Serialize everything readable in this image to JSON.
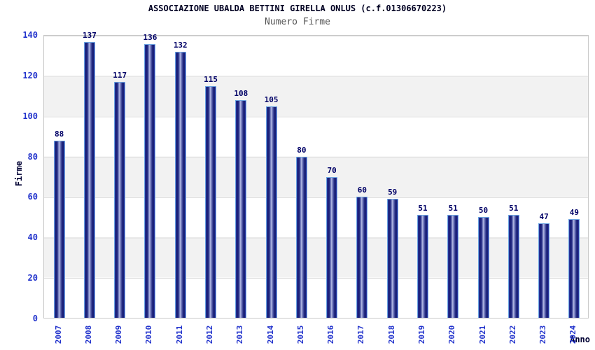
{
  "header": {
    "title": "ASSOCIAZIONE UBALDA BETTINI GIRELLA ONLUS (c.f.01306670223)",
    "subtitle": "Numero Firme"
  },
  "chart_data": {
    "type": "bar",
    "title": "ASSOCIAZIONE UBALDA BETTINI GIRELLA ONLUS (c.f.01306670223)",
    "subtitle": "Numero Firme",
    "xlabel": "Anno",
    "ylabel": "Firme",
    "categories": [
      "2007",
      "2008",
      "2009",
      "2010",
      "2011",
      "2012",
      "2013",
      "2014",
      "2015",
      "2016",
      "2017",
      "2018",
      "2019",
      "2020",
      "2021",
      "2022",
      "2023",
      "2024"
    ],
    "values": [
      88,
      137,
      117,
      136,
      132,
      115,
      108,
      105,
      80,
      70,
      60,
      59,
      51,
      51,
      50,
      51,
      47,
      49
    ],
    "ylim": [
      0,
      140
    ],
    "yticks": [
      0,
      20,
      40,
      60,
      80,
      100,
      120,
      140
    ],
    "grid": "alternating-horizontal-bands",
    "legend": "none",
    "colors": {
      "bar_dark": "#171d74",
      "bar_light": "#b9bfe6",
      "bar_border": "#6ea6e2",
      "tick_label": "#2233cc",
      "value_label": "#000066",
      "axis_title": "#000033",
      "title": "#000022",
      "subtitle": "#555555",
      "band_gray": "#f2f2f2",
      "plot_border": "#c8c8c8"
    }
  }
}
